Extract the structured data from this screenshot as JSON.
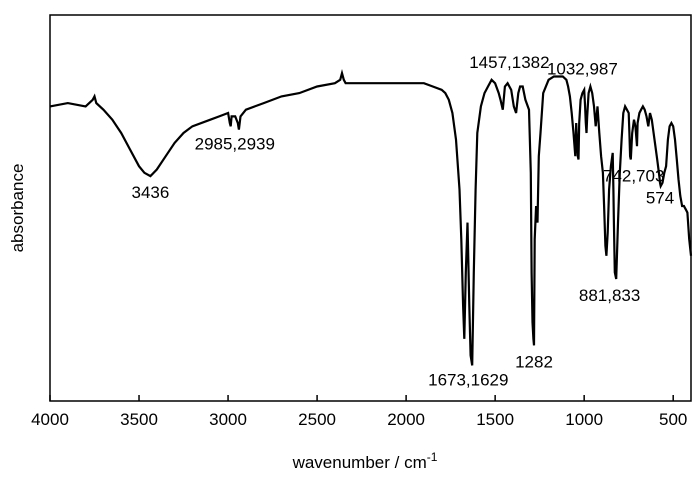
{
  "chart_data": {
    "type": "line",
    "title": "",
    "xlabel": "wavenumber / cm",
    "xlabel_superscript": "-1",
    "ylabel": "absorbance",
    "xlim": [
      4000,
      400
    ],
    "x_reversed": true,
    "ylim": [
      0,
      1
    ],
    "grid": false,
    "legend": "none",
    "x_ticks": [
      "4000",
      "3500",
      "3000",
      "2500",
      "2000",
      "1500",
      "1000",
      "500"
    ],
    "x_tick_values": [
      4000,
      3500,
      3000,
      2500,
      2000,
      1500,
      1000,
      500
    ],
    "series": [
      {
        "color": "#000000",
        "x": [
          4000,
          3900,
          3800,
          3760,
          3750,
          3740,
          3700,
          3650,
          3600,
          3550,
          3500,
          3470,
          3436,
          3400,
          3350,
          3300,
          3250,
          3200,
          3100,
          3050,
          3000,
          2990,
          2985,
          2980,
          2960,
          2945,
          2939,
          2930,
          2900,
          2850,
          2800,
          2700,
          2600,
          2500,
          2400,
          2370,
          2360,
          2350,
          2340,
          2320,
          2300,
          2200,
          2100,
          2000,
          1900,
          1850,
          1800,
          1780,
          1760,
          1740,
          1720,
          1700,
          1690,
          1680,
          1673,
          1665,
          1655,
          1645,
          1638,
          1629,
          1620,
          1610,
          1600,
          1580,
          1560,
          1540,
          1520,
          1500,
          1480,
          1470,
          1457,
          1445,
          1430,
          1410,
          1395,
          1382,
          1370,
          1360,
          1345,
          1330,
          1310,
          1300,
          1295,
          1290,
          1285,
          1282,
          1278,
          1270,
          1262,
          1255,
          1245,
          1230,
          1200,
          1170,
          1150,
          1120,
          1100,
          1090,
          1080,
          1070,
          1060,
          1050,
          1045,
          1040,
          1036,
          1032,
          1028,
          1020,
          1010,
          1000,
          995,
          991,
          987,
          983,
          975,
          965,
          955,
          945,
          935,
          925,
          915,
          905,
          895,
          888,
          881,
          875,
          868,
          860,
          850,
          840,
          836,
          833,
          828,
          820,
          810,
          800,
          790,
          780,
          770,
          760,
          750,
          746,
          742,
          738,
          730,
          720,
          712,
          706,
          703,
          700,
          690,
          680,
          670,
          660,
          650,
          640,
          630,
          620,
          610,
          600,
          590,
          580,
          576,
          574,
          570,
          560,
          550,
          540,
          530,
          520,
          510,
          500,
          490,
          480,
          470,
          460,
          450,
          440,
          430,
          420,
          410,
          400
        ],
        "y": [
          0.8,
          0.81,
          0.8,
          0.82,
          0.83,
          0.81,
          0.79,
          0.76,
          0.72,
          0.67,
          0.62,
          0.6,
          0.59,
          0.61,
          0.65,
          0.69,
          0.72,
          0.74,
          0.76,
          0.77,
          0.78,
          0.75,
          0.74,
          0.77,
          0.77,
          0.75,
          0.73,
          0.77,
          0.79,
          0.8,
          0.81,
          0.83,
          0.84,
          0.86,
          0.87,
          0.88,
          0.9,
          0.88,
          0.87,
          0.87,
          0.87,
          0.87,
          0.87,
          0.87,
          0.87,
          0.86,
          0.85,
          0.84,
          0.82,
          0.78,
          0.7,
          0.55,
          0.4,
          0.2,
          0.1,
          0.3,
          0.45,
          0.2,
          0.05,
          0.02,
          0.3,
          0.55,
          0.72,
          0.8,
          0.84,
          0.86,
          0.88,
          0.87,
          0.84,
          0.82,
          0.79,
          0.86,
          0.87,
          0.85,
          0.8,
          0.78,
          0.84,
          0.86,
          0.86,
          0.82,
          0.79,
          0.6,
          0.3,
          0.15,
          0.1,
          0.08,
          0.4,
          0.5,
          0.45,
          0.65,
          0.72,
          0.84,
          0.88,
          0.89,
          0.89,
          0.89,
          0.88,
          0.86,
          0.83,
          0.78,
          0.72,
          0.65,
          0.75,
          0.7,
          0.65,
          0.64,
          0.75,
          0.82,
          0.84,
          0.85,
          0.8,
          0.75,
          0.72,
          0.77,
          0.84,
          0.86,
          0.84,
          0.8,
          0.74,
          0.8,
          0.72,
          0.65,
          0.6,
          0.5,
          0.38,
          0.35,
          0.42,
          0.55,
          0.62,
          0.66,
          0.55,
          0.45,
          0.3,
          0.28,
          0.45,
          0.6,
          0.7,
          0.78,
          0.8,
          0.79,
          0.78,
          0.72,
          0.65,
          0.64,
          0.72,
          0.76,
          0.74,
          0.7,
          0.68,
          0.75,
          0.78,
          0.79,
          0.8,
          0.79,
          0.77,
          0.74,
          0.78,
          0.76,
          0.72,
          0.68,
          0.64,
          0.6,
          0.58,
          0.57,
          0.56,
          0.57,
          0.6,
          0.62,
          0.7,
          0.74,
          0.75,
          0.74,
          0.7,
          0.64,
          0.58,
          0.53,
          0.5,
          0.5,
          0.49,
          0.48,
          0.4,
          0.35
        ]
      }
    ],
    "annotations": [
      {
        "text": "3436",
        "x": 3436,
        "y": 0.59
      },
      {
        "text": "2985,2939",
        "x": 2962,
        "y": 0.73
      },
      {
        "text": "1673,1629",
        "x": 1651,
        "y": 0.02
      },
      {
        "text": "1457,1382",
        "x": 1420,
        "y": 0.88
      },
      {
        "text": "1282",
        "x": 1282,
        "y": 0.08
      },
      {
        "text": "1032,987",
        "x": 1010,
        "y": 0.86
      },
      {
        "text": "881,833",
        "x": 857,
        "y": 0.28
      },
      {
        "text": "742,703",
        "x": 722,
        "y": 0.64
      },
      {
        "text": "574",
        "x": 574,
        "y": 0.58
      }
    ]
  }
}
